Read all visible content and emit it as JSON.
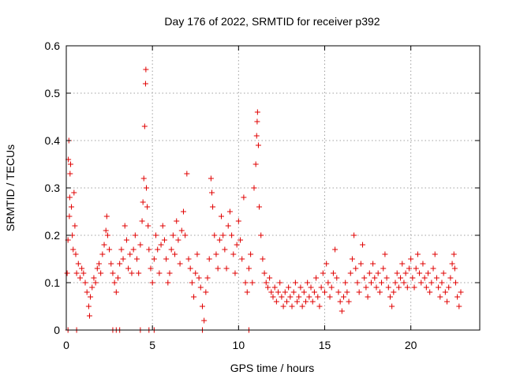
{
  "chart_data": {
    "type": "scatter",
    "title": "Day 176 of 2022, SRMTID for receiver p392",
    "xlabel": "GPS time / hours",
    "ylabel": "SRMTID / TECUs",
    "xlim": [
      0,
      24
    ],
    "ylim": [
      0,
      0.6
    ],
    "xticks": [
      0,
      5,
      10,
      15,
      20
    ],
    "xtick_labels": [
      "0",
      "5",
      "10",
      "15",
      "20"
    ],
    "yticks": [
      0,
      0.1,
      0.2,
      0.3,
      0.4,
      0.5,
      0.6
    ],
    "ytick_labels": [
      "0",
      "0.1",
      "0.2",
      "0.3",
      "0.4",
      "0.5",
      "0.6"
    ],
    "grid": true,
    "marker": "plus",
    "color": "#e00000",
    "series": [
      {
        "name": "SRMTID",
        "points": [
          [
            0.05,
            0.12
          ],
          [
            0.1,
            0.19
          ],
          [
            0.12,
            0.36
          ],
          [
            0.15,
            0.4
          ],
          [
            0.18,
            0.24
          ],
          [
            0.2,
            0.28
          ],
          [
            0.22,
            0.33
          ],
          [
            0.25,
            0.35
          ],
          [
            0.3,
            0.26
          ],
          [
            0.35,
            0.2
          ],
          [
            0.4,
            0.17
          ],
          [
            0.45,
            0.29
          ],
          [
            0.5,
            0.22
          ],
          [
            0.55,
            0.16
          ],
          [
            0.6,
            0.12
          ],
          [
            0.7,
            0.14
          ],
          [
            0.8,
            0.11
          ],
          [
            0.9,
            0.13
          ],
          [
            1.0,
            0.12
          ],
          [
            1.1,
            0.1
          ],
          [
            1.2,
            0.08
          ],
          [
            1.3,
            0.05
          ],
          [
            1.35,
            0.03
          ],
          [
            1.4,
            0.07
          ],
          [
            1.5,
            0.09
          ],
          [
            1.6,
            0.11
          ],
          [
            1.7,
            0.1
          ],
          [
            1.8,
            0.13
          ],
          [
            1.9,
            0.14
          ],
          [
            2.0,
            0.12
          ],
          [
            2.1,
            0.16
          ],
          [
            2.2,
            0.18
          ],
          [
            2.3,
            0.21
          ],
          [
            2.35,
            0.24
          ],
          [
            2.4,
            0.2
          ],
          [
            2.5,
            0.17
          ],
          [
            2.6,
            0.14
          ],
          [
            2.7,
            0.12
          ],
          [
            2.8,
            0.1
          ],
          [
            2.9,
            0.08
          ],
          [
            3.0,
            0.11
          ],
          [
            3.1,
            0.14
          ],
          [
            3.2,
            0.17
          ],
          [
            3.3,
            0.15
          ],
          [
            3.4,
            0.22
          ],
          [
            3.5,
            0.19
          ],
          [
            3.6,
            0.13
          ],
          [
            3.7,
            0.16
          ],
          [
            3.8,
            0.12
          ],
          [
            3.9,
            0.17
          ],
          [
            4.0,
            0.2
          ],
          [
            4.1,
            0.15
          ],
          [
            4.2,
            0.12
          ],
          [
            4.3,
            0.18
          ],
          [
            4.4,
            0.23
          ],
          [
            4.45,
            0.27
          ],
          [
            4.5,
            0.32
          ],
          [
            4.55,
            0.43
          ],
          [
            4.6,
            0.52
          ],
          [
            4.62,
            0.55
          ],
          [
            4.65,
            0.3
          ],
          [
            4.7,
            0.26
          ],
          [
            4.75,
            0.22
          ],
          [
            4.8,
            0.17
          ],
          [
            4.9,
            0.13
          ],
          [
            5.0,
            0.1
          ],
          [
            5.1,
            0.15
          ],
          [
            5.2,
            0.2
          ],
          [
            5.3,
            0.17
          ],
          [
            5.4,
            0.12
          ],
          [
            5.5,
            0.18
          ],
          [
            5.6,
            0.22
          ],
          [
            5.7,
            0.19
          ],
          [
            5.8,
            0.15
          ],
          [
            5.9,
            0.1
          ],
          [
            6.0,
            0.12
          ],
          [
            6.1,
            0.17
          ],
          [
            6.2,
            0.2
          ],
          [
            6.3,
            0.16
          ],
          [
            6.4,
            0.23
          ],
          [
            6.5,
            0.19
          ],
          [
            6.6,
            0.14
          ],
          [
            6.7,
            0.21
          ],
          [
            6.8,
            0.25
          ],
          [
            6.9,
            0.2
          ],
          [
            7.0,
            0.33
          ],
          [
            7.1,
            0.15
          ],
          [
            7.2,
            0.13
          ],
          [
            7.3,
            0.1
          ],
          [
            7.4,
            0.07
          ],
          [
            7.5,
            0.12
          ],
          [
            7.6,
            0.16
          ],
          [
            7.7,
            0.11
          ],
          [
            7.8,
            0.09
          ],
          [
            7.9,
            0.05
          ],
          [
            8.0,
            0.02
          ],
          [
            8.1,
            0.08
          ],
          [
            8.2,
            0.11
          ],
          [
            8.3,
            0.15
          ],
          [
            8.4,
            0.32
          ],
          [
            8.45,
            0.29
          ],
          [
            8.5,
            0.26
          ],
          [
            8.6,
            0.2
          ],
          [
            8.7,
            0.16
          ],
          [
            8.8,
            0.13
          ],
          [
            8.9,
            0.19
          ],
          [
            9.0,
            0.24
          ],
          [
            9.1,
            0.2
          ],
          [
            9.2,
            0.17
          ],
          [
            9.3,
            0.13
          ],
          [
            9.4,
            0.22
          ],
          [
            9.5,
            0.25
          ],
          [
            9.6,
            0.2
          ],
          [
            9.7,
            0.16
          ],
          [
            9.8,
            0.12
          ],
          [
            9.9,
            0.18
          ],
          [
            10.0,
            0.23
          ],
          [
            10.1,
            0.19
          ],
          [
            10.2,
            0.15
          ],
          [
            10.3,
            0.28
          ],
          [
            10.4,
            0.1
          ],
          [
            10.5,
            0.08
          ],
          [
            10.6,
            0.13
          ],
          [
            10.7,
            0.16
          ],
          [
            10.8,
            0.1
          ],
          [
            10.9,
            0.3
          ],
          [
            11.0,
            0.35
          ],
          [
            11.05,
            0.41
          ],
          [
            11.08,
            0.44
          ],
          [
            11.1,
            0.46
          ],
          [
            11.15,
            0.39
          ],
          [
            11.2,
            0.26
          ],
          [
            11.3,
            0.2
          ],
          [
            11.4,
            0.15
          ],
          [
            11.5,
            0.12
          ],
          [
            11.6,
            0.1
          ],
          [
            11.7,
            0.09
          ],
          [
            11.8,
            0.11
          ],
          [
            11.9,
            0.08
          ],
          [
            12.0,
            0.07
          ],
          [
            12.1,
            0.09
          ],
          [
            12.2,
            0.06
          ],
          [
            12.3,
            0.08
          ],
          [
            12.4,
            0.1
          ],
          [
            12.5,
            0.07
          ],
          [
            12.6,
            0.05
          ],
          [
            12.7,
            0.08
          ],
          [
            12.8,
            0.06
          ],
          [
            12.9,
            0.09
          ],
          [
            13.0,
            0.07
          ],
          [
            13.1,
            0.05
          ],
          [
            13.2,
            0.08
          ],
          [
            13.3,
            0.1
          ],
          [
            13.4,
            0.06
          ],
          [
            13.5,
            0.07
          ],
          [
            13.6,
            0.09
          ],
          [
            13.7,
            0.05
          ],
          [
            13.8,
            0.08
          ],
          [
            13.9,
            0.06
          ],
          [
            14.0,
            0.1
          ],
          [
            14.1,
            0.07
          ],
          [
            14.2,
            0.09
          ],
          [
            14.3,
            0.06
          ],
          [
            14.4,
            0.08
          ],
          [
            14.5,
            0.11
          ],
          [
            14.6,
            0.07
          ],
          [
            14.7,
            0.05
          ],
          [
            14.8,
            0.09
          ],
          [
            14.9,
            0.12
          ],
          [
            15.0,
            0.08
          ],
          [
            15.1,
            0.14
          ],
          [
            15.2,
            0.1
          ],
          [
            15.3,
            0.07
          ],
          [
            15.4,
            0.09
          ],
          [
            15.5,
            0.12
          ],
          [
            15.6,
            0.17
          ],
          [
            15.7,
            0.11
          ],
          [
            15.8,
            0.08
          ],
          [
            15.9,
            0.06
          ],
          [
            16.0,
            0.04
          ],
          [
            16.1,
            0.07
          ],
          [
            16.2,
            0.1
          ],
          [
            16.3,
            0.08
          ],
          [
            16.4,
            0.06
          ],
          [
            16.5,
            0.12
          ],
          [
            16.6,
            0.15
          ],
          [
            16.7,
            0.2
          ],
          [
            16.8,
            0.13
          ],
          [
            16.9,
            0.1
          ],
          [
            17.0,
            0.08
          ],
          [
            17.1,
            0.14
          ],
          [
            17.2,
            0.18
          ],
          [
            17.3,
            0.11
          ],
          [
            17.4,
            0.09
          ],
          [
            17.5,
            0.07
          ],
          [
            17.6,
            0.12
          ],
          [
            17.7,
            0.1
          ],
          [
            17.8,
            0.14
          ],
          [
            17.9,
            0.11
          ],
          [
            18.0,
            0.09
          ],
          [
            18.1,
            0.12
          ],
          [
            18.2,
            0.08
          ],
          [
            18.3,
            0.1
          ],
          [
            18.4,
            0.13
          ],
          [
            18.5,
            0.16
          ],
          [
            18.6,
            0.11
          ],
          [
            18.7,
            0.09
          ],
          [
            18.8,
            0.07
          ],
          [
            18.9,
            0.05
          ],
          [
            19.0,
            0.08
          ],
          [
            19.1,
            0.1
          ],
          [
            19.2,
            0.12
          ],
          [
            19.3,
            0.09
          ],
          [
            19.4,
            0.11
          ],
          [
            19.5,
            0.14
          ],
          [
            19.6,
            0.1
          ],
          [
            19.7,
            0.12
          ],
          [
            19.8,
            0.09
          ],
          [
            19.9,
            0.13
          ],
          [
            20.0,
            0.15
          ],
          [
            20.1,
            0.11
          ],
          [
            20.2,
            0.09
          ],
          [
            20.3,
            0.13
          ],
          [
            20.4,
            0.16
          ],
          [
            20.5,
            0.12
          ],
          [
            20.6,
            0.1
          ],
          [
            20.7,
            0.14
          ],
          [
            20.8,
            0.11
          ],
          [
            20.9,
            0.09
          ],
          [
            21.0,
            0.12
          ],
          [
            21.1,
            0.08
          ],
          [
            21.2,
            0.1
          ],
          [
            21.3,
            0.13
          ],
          [
            21.4,
            0.16
          ],
          [
            21.5,
            0.11
          ],
          [
            21.6,
            0.09
          ],
          [
            21.7,
            0.07
          ],
          [
            21.8,
            0.1
          ],
          [
            21.9,
            0.12
          ],
          [
            22.0,
            0.08
          ],
          [
            22.1,
            0.06
          ],
          [
            22.2,
            0.09
          ],
          [
            22.3,
            0.11
          ],
          [
            22.4,
            0.14
          ],
          [
            22.5,
            0.16
          ],
          [
            22.55,
            0.13
          ],
          [
            22.6,
            0.1
          ],
          [
            22.7,
            0.07
          ],
          [
            22.8,
            0.05
          ],
          [
            22.9,
            0.08
          ],
          [
            0.1,
            0.0
          ],
          [
            0.6,
            0.0
          ],
          [
            2.7,
            0.0
          ],
          [
            2.9,
            0.0
          ],
          [
            3.1,
            0.0
          ],
          [
            4.3,
            0.0
          ],
          [
            4.8,
            0.0
          ],
          [
            5.1,
            0.0
          ],
          [
            7.9,
            0.0
          ],
          [
            10.6,
            0.0
          ]
        ]
      }
    ]
  }
}
